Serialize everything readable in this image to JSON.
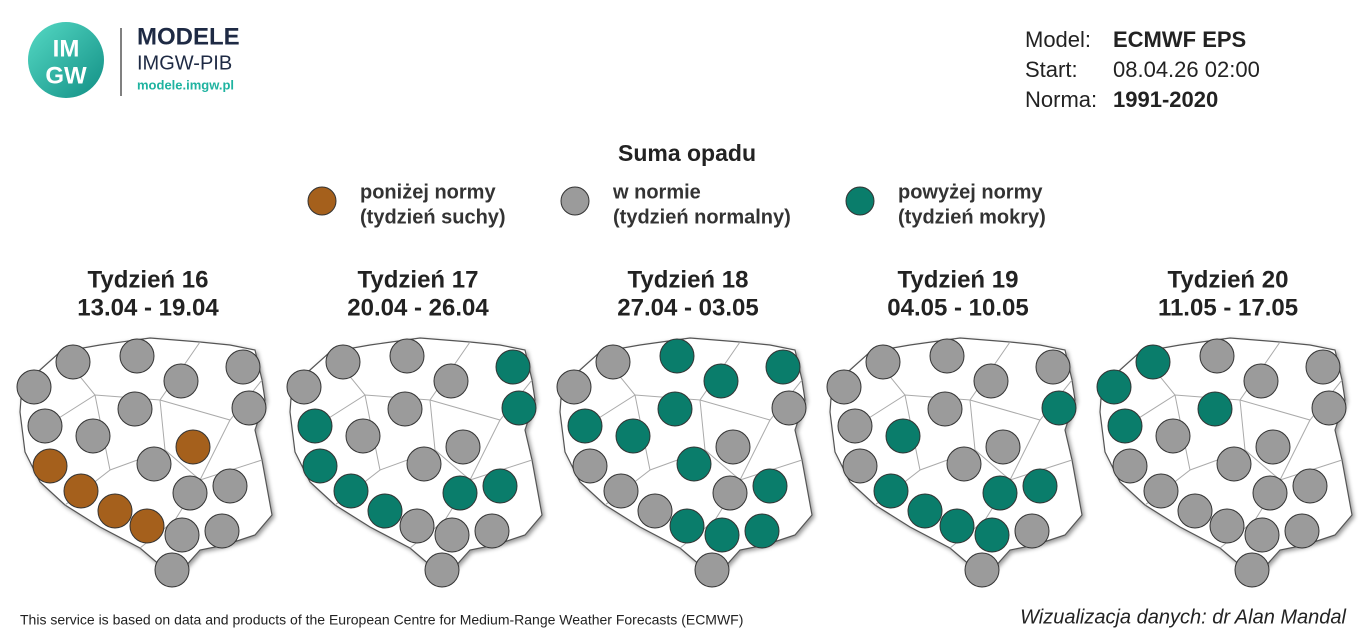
{
  "header": {
    "logo_lines": [
      "IM",
      "GW"
    ],
    "brand": "MODELE",
    "org": "IMGW-PIB",
    "url": "modele.imgw.pl"
  },
  "info": [
    {
      "label": "Model:",
      "value": "ECMWF EPS"
    },
    {
      "label": "Start:",
      "value": "08.04.26 02:00"
    },
    {
      "label": "Norma:",
      "value": "1991-2020"
    }
  ],
  "title": "Suma opadu",
  "legend": [
    {
      "lines": [
        "poniżej normy",
        "(tydzień suchy)"
      ],
      "color": "#a5601c"
    },
    {
      "lines": [
        "w normie",
        "(tydzień normalny)"
      ],
      "color": "#9b9b9b"
    },
    {
      "lines": [
        "powyżej normy",
        "(tydzień mokry)"
      ],
      "color": "#0a7d6b"
    }
  ],
  "weeks": [
    {
      "title": "Tydzień 16",
      "dates": "13.04 - 19.04",
      "stations": [
        1,
        1,
        1,
        1,
        1,
        1,
        1,
        1,
        1,
        0,
        0,
        1,
        0,
        1,
        1,
        0,
        0,
        1,
        1,
        1
      ]
    },
    {
      "title": "Tydzień 17",
      "dates": "20.04 - 26.04",
      "stations": [
        1,
        1,
        2,
        1,
        1,
        1,
        2,
        2,
        1,
        1,
        2,
        1,
        2,
        2,
        2,
        2,
        1,
        1,
        1,
        1
      ]
    },
    {
      "title": "Tydzień 18",
      "dates": "27.04 - 03.05",
      "stations": [
        1,
        2,
        2,
        1,
        2,
        2,
        1,
        2,
        2,
        1,
        1,
        2,
        1,
        2,
        1,
        1,
        2,
        2,
        2,
        1
      ]
    },
    {
      "title": "Tydzień 19",
      "dates": "04.05 - 10.05",
      "stations": [
        1,
        1,
        1,
        1,
        1,
        1,
        2,
        1,
        2,
        1,
        1,
        1,
        2,
        2,
        2,
        2,
        2,
        1,
        2,
        1
      ]
    },
    {
      "title": "Tydzień 20",
      "dates": "11.05 - 17.05",
      "stations": [
        2,
        1,
        1,
        2,
        1,
        2,
        1,
        2,
        1,
        1,
        1,
        1,
        1,
        1,
        1,
        1,
        1,
        1,
        1,
        1
      ]
    }
  ],
  "footer": {
    "left": "This service is based on data and products of the European Centre for Medium-Range Weather Forecasts (ECMWF)",
    "right": "Wizualizacja danych: dr Alan Mandal"
  }
}
